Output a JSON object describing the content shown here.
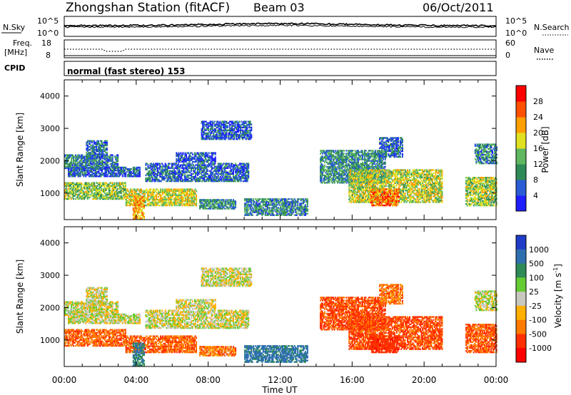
{
  "header": {
    "station": "Zhongshan Station (fitACF)",
    "beam": "Beam 03",
    "date": "06/Oct/2011"
  },
  "strips": {
    "nsky_label": "N.Sky",
    "nsky_top": "10^5",
    "nsky_bottom": "10^0",
    "nsearch_label": "N.Search",
    "nsearch_top": "10^5",
    "nsearch_bottom": "10^0",
    "freq_label_1": "Freq.",
    "freq_label_2": "[MHz]",
    "freq_top": "18",
    "freq_bottom": "8",
    "nave_label": "Nave",
    "nave_top": "60",
    "nave_bottom": "0",
    "cpid_label": "CPID",
    "cpid_value": "normal (fast stereo) 153"
  },
  "axes": {
    "ylabel": "Slant Range [km]",
    "xlabel": "Time UT",
    "x_ticks": [
      "00:00",
      "04:00",
      "08:00",
      "12:00",
      "16:00",
      "20:00",
      "00:00"
    ],
    "y_ticks": [
      "1000",
      "2000",
      "3000",
      "4000"
    ]
  },
  "colorbars": {
    "power": {
      "label": "Power [dB]",
      "ticks": [
        "4",
        "8",
        "12",
        "16",
        "20",
        "24",
        "28"
      ],
      "colors": [
        "#1e1eff",
        "#2a5cd6",
        "#2e8b57",
        "#5fb85f",
        "#e0e020",
        "#ff9f00",
        "#ff5000",
        "#ff0000"
      ]
    },
    "velocity": {
      "label": "Velocity [m s",
      "label_sup": "-1",
      "label_end": "]",
      "ticks": [
        "1000",
        "500",
        "100",
        "25",
        "-25",
        "-100",
        "-500",
        "-1000"
      ],
      "colors": [
        "#1e3cc8",
        "#2e6fb0",
        "#2e8b57",
        "#66cc33",
        "#c8c8c0",
        "#ffb000",
        "#ff7a00",
        "#ff3000",
        "#ff0000"
      ]
    }
  },
  "chart_data": [
    {
      "type": "heatmap",
      "title": "Power",
      "xlabel": "Time UT",
      "ylabel": "Slant Range [km]",
      "x_range_hours": [
        0,
        24
      ],
      "y_range_km": [
        180,
        4500
      ],
      "colorbar_label": "Power [dB]",
      "colorbar_range": [
        0,
        30
      ],
      "echo_regions": [
        {
          "t0": 0.0,
          "t1": 3.0,
          "r0": 1750,
          "r1": 2200,
          "db": 9
        },
        {
          "t0": 1.2,
          "t1": 2.4,
          "r0": 2050,
          "r1": 2600,
          "db": 8
        },
        {
          "t0": 0.2,
          "t1": 4.2,
          "r0": 1500,
          "r1": 1800,
          "db": 6
        },
        {
          "t0": 0.0,
          "t1": 3.4,
          "r0": 800,
          "r1": 1300,
          "db": 15
        },
        {
          "t0": 3.4,
          "t1": 7.3,
          "r0": 600,
          "r1": 1100,
          "db": 18
        },
        {
          "t0": 3.8,
          "t1": 4.4,
          "r0": 200,
          "r1": 900,
          "db": 22
        },
        {
          "t0": 4.5,
          "t1": 10.2,
          "r0": 1350,
          "r1": 1900,
          "db": 7
        },
        {
          "t0": 6.2,
          "t1": 8.4,
          "r0": 1950,
          "r1": 2250,
          "db": 6
        },
        {
          "t0": 7.6,
          "t1": 10.4,
          "r0": 2650,
          "r1": 3200,
          "db": 6
        },
        {
          "t0": 7.5,
          "t1": 9.5,
          "r0": 500,
          "r1": 800,
          "db": 10
        },
        {
          "t0": 10.0,
          "t1": 13.5,
          "r0": 300,
          "r1": 800,
          "db": 9
        },
        {
          "t0": 14.2,
          "t1": 17.8,
          "r0": 1300,
          "r1": 2300,
          "db": 10
        },
        {
          "t0": 15.8,
          "t1": 21.0,
          "r0": 700,
          "r1": 1700,
          "db": 17
        },
        {
          "t0": 17.0,
          "t1": 18.6,
          "r0": 600,
          "r1": 1100,
          "db": 25
        },
        {
          "t0": 17.5,
          "t1": 18.8,
          "r0": 2100,
          "r1": 2700,
          "db": 7
        },
        {
          "t0": 22.3,
          "t1": 24.0,
          "r0": 600,
          "r1": 1500,
          "db": 16
        },
        {
          "t0": 22.8,
          "t1": 24.0,
          "r0": 1900,
          "r1": 2500,
          "db": 9
        }
      ]
    },
    {
      "type": "heatmap",
      "title": "Velocity",
      "xlabel": "Time UT",
      "ylabel": "Slant Range [km]",
      "x_range_hours": [
        0,
        24
      ],
      "y_range_km": [
        180,
        4500
      ],
      "colorbar_label": "Velocity [m s-1]",
      "colorbar_range": [
        -1000,
        1000
      ],
      "echo_regions": [
        {
          "t0": 0.0,
          "t1": 3.0,
          "r0": 1750,
          "r1": 2200,
          "v": 0
        },
        {
          "t0": 1.2,
          "t1": 2.4,
          "r0": 2050,
          "r1": 2600,
          "v": 0
        },
        {
          "t0": 0.2,
          "t1": 4.2,
          "r0": 1500,
          "r1": 1800,
          "v": 0
        },
        {
          "t0": 0.0,
          "t1": 3.4,
          "r0": 800,
          "r1": 1300,
          "v": -250
        },
        {
          "t0": 3.4,
          "t1": 7.3,
          "r0": 600,
          "r1": 1100,
          "v": -250
        },
        {
          "t0": 3.8,
          "t1": 4.4,
          "r0": 200,
          "r1": 900,
          "v": 300
        },
        {
          "t0": 4.5,
          "t1": 10.2,
          "r0": 1350,
          "r1": 1900,
          "v": 0
        },
        {
          "t0": 6.2,
          "t1": 8.4,
          "r0": 1950,
          "r1": 2250,
          "v": 0
        },
        {
          "t0": 7.6,
          "t1": 10.4,
          "r0": 2650,
          "r1": 3200,
          "v": 0
        },
        {
          "t0": 7.5,
          "t1": 9.5,
          "r0": 500,
          "r1": 800,
          "v": -200
        },
        {
          "t0": 10.0,
          "t1": 13.5,
          "r0": 300,
          "r1": 800,
          "v": 400
        },
        {
          "t0": 14.2,
          "t1": 17.8,
          "r0": 1300,
          "r1": 2300,
          "v": -350
        },
        {
          "t0": 15.8,
          "t1": 21.0,
          "r0": 700,
          "r1": 1700,
          "v": -350
        },
        {
          "t0": 17.0,
          "t1": 18.6,
          "r0": 600,
          "r1": 1100,
          "v": -600
        },
        {
          "t0": 17.5,
          "t1": 18.8,
          "r0": 2100,
          "r1": 2700,
          "v": -200
        },
        {
          "t0": 22.3,
          "t1": 24.0,
          "r0": 600,
          "r1": 1500,
          "v": -300
        },
        {
          "t0": 22.8,
          "t1": 24.0,
          "r0": 1900,
          "r1": 2500,
          "v": 0
        }
      ]
    }
  ]
}
